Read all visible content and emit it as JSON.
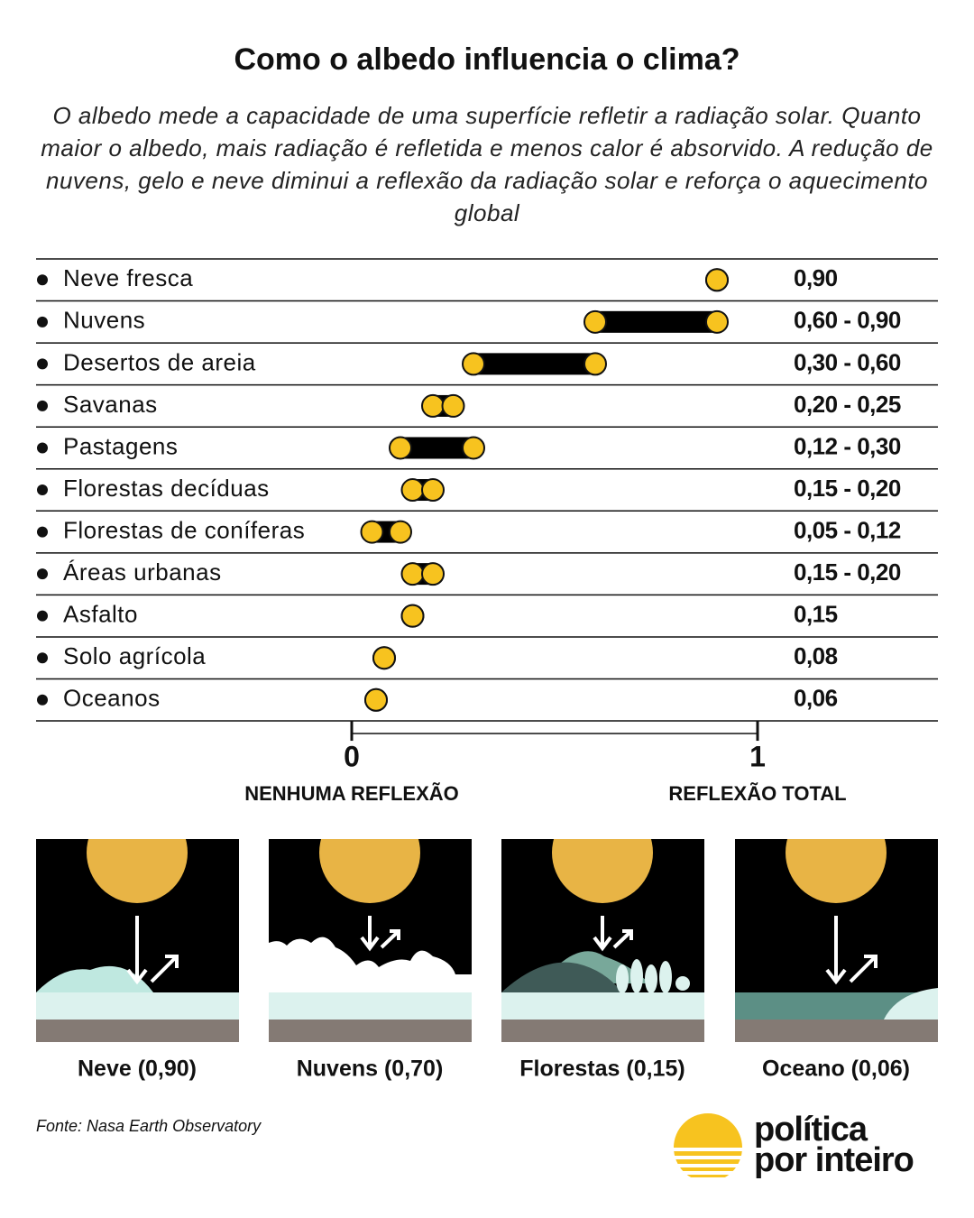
{
  "chart_data": {
    "type": "range",
    "title": "Como o albedo influencia o clima?",
    "subtitle": "O albedo mede a capacidade de uma superfície refletir a radiação solar. Quanto maior o albedo, mais radiação é refletida e menos calor é absorvido. A redução de nuvens, gelo e neve diminui a reflexão da radiação solar e reforça o aquecimento global",
    "categories": [
      "Neve fresca",
      "Nuvens",
      "Desertos de areia",
      "Savanas",
      "Pastagens",
      "Florestas decíduas",
      "Florestas de coníferas",
      "Áreas urbanas",
      "Asfalto",
      "Solo agrícola",
      "Oceanos"
    ],
    "low": [
      0.9,
      0.6,
      0.3,
      0.2,
      0.12,
      0.15,
      0.05,
      0.15,
      0.15,
      0.08,
      0.06
    ],
    "high": [
      0.9,
      0.9,
      0.6,
      0.25,
      0.3,
      0.2,
      0.12,
      0.2,
      0.15,
      0.08,
      0.06
    ],
    "value_labels": [
      "0,90",
      "0,60 - 0,90",
      "0,30 - 0,60",
      "0,20 - 0,25",
      "0,12 - 0,30",
      "0,15 - 0,20",
      "0,05 - 0,12",
      "0,15 - 0,20",
      "0,15",
      "0,08",
      "0,06"
    ],
    "color": "#f7c31f",
    "bar_color": "#000000",
    "xlim": [
      0,
      1
    ],
    "xticks": [
      0,
      1
    ],
    "x_annotations": [
      "NENHUMA REFLEXÃO",
      "REFLEXÃO TOTAL"
    ]
  },
  "panels": [
    {
      "label": "Neve (0,90)"
    },
    {
      "label": "Nuvens (0,70)"
    },
    {
      "label": "Florestas (0,15)"
    },
    {
      "label": "Oceano (0,06)"
    }
  ],
  "source": "Fonte: Nasa Earth Observatory",
  "logo": [
    "política",
    "por inteiro"
  ]
}
